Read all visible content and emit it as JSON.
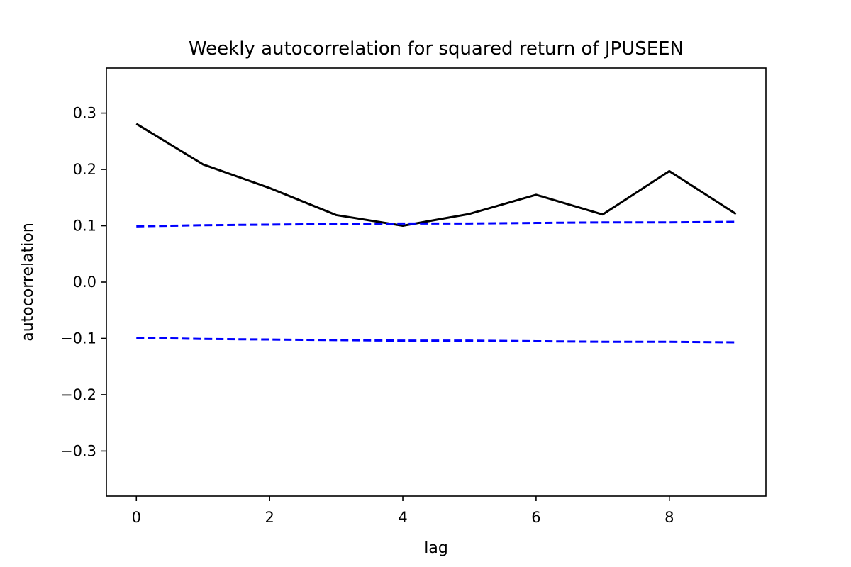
{
  "chart_data": {
    "type": "line",
    "title": "Weekly autocorrelation for squared return of JPUSEEN",
    "xlabel": "lag",
    "ylabel": "autocorrelation",
    "xlim": [
      -0.45,
      9.45
    ],
    "ylim": [
      -0.38,
      0.38
    ],
    "x_ticks": [
      0,
      2,
      4,
      6,
      8
    ],
    "y_ticks": [
      0.3,
      0.2,
      0.1,
      0.0,
      -0.1,
      -0.2,
      -0.3
    ],
    "x_tick_labels": [
      "0",
      "2",
      "4",
      "6",
      "8"
    ],
    "y_tick_labels": [
      "0.3",
      "0.2",
      "0.1",
      "0.0",
      "−0.1",
      "−0.2",
      "−0.3"
    ],
    "grid": false,
    "x": [
      0,
      1,
      2,
      3,
      4,
      5,
      6,
      7,
      8,
      9
    ],
    "series": [
      {
        "role": "autocorrelation",
        "color": "#000000",
        "style": "solid",
        "values": [
          0.281,
          0.209,
          0.167,
          0.119,
          0.1,
          0.121,
          0.155,
          0.12,
          0.197,
          0.121
        ]
      },
      {
        "role": "upper-confidence-bound",
        "color": "#0000ff",
        "style": "dashed",
        "values": [
          0.099,
          0.101,
          0.102,
          0.103,
          0.104,
          0.104,
          0.105,
          0.106,
          0.106,
          0.107
        ]
      },
      {
        "role": "lower-confidence-bound",
        "color": "#0000ff",
        "style": "dashed",
        "values": [
          -0.099,
          -0.101,
          -0.102,
          -0.103,
          -0.104,
          -0.104,
          -0.105,
          -0.106,
          -0.106,
          -0.107
        ]
      }
    ]
  }
}
